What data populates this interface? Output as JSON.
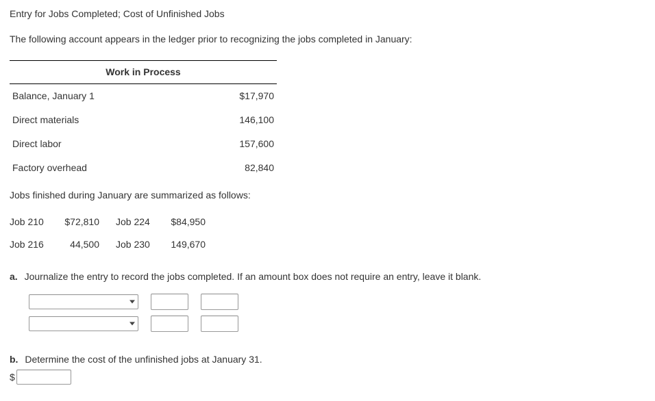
{
  "title": "Entry for Jobs Completed; Cost of Unfinished Jobs",
  "intro": "The following account appears in the ledger prior to recognizing the jobs completed in January:",
  "wip": {
    "header": "Work in Process",
    "rows": [
      {
        "label": "Balance, January 1",
        "value": "$17,970"
      },
      {
        "label": "Direct materials",
        "value": "146,100"
      },
      {
        "label": "Direct labor",
        "value": "157,600"
      },
      {
        "label": "Factory overhead",
        "value": "82,840"
      }
    ]
  },
  "jobs_summary_text": "Jobs finished during January are summarized as follows:",
  "jobs": {
    "rows": [
      {
        "l1": "Job 210",
        "v1": "$72,810",
        "l2": "Job 224",
        "v2": "$84,950"
      },
      {
        "l1": "Job 216",
        "v1": "44,500",
        "l2": "Job 230",
        "v2": "149,670"
      }
    ]
  },
  "part_a": {
    "label": "a.",
    "text": "Journalize the entry to record the jobs completed. If an amount box does not require an entry, leave it blank."
  },
  "part_b": {
    "label": "b.",
    "text": "Determine the cost of the unfinished jobs at January 31.",
    "currency": "$"
  },
  "colors": {
    "text": "#333333",
    "border": "#999999",
    "rule": "#000000",
    "bg": "#ffffff"
  }
}
